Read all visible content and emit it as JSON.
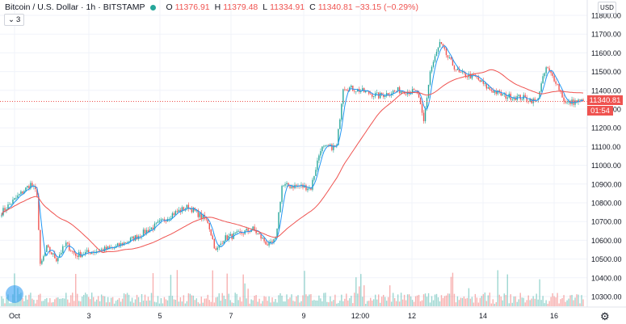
{
  "header": {
    "symbol": "Bitcoin / U.S. Dollar",
    "interval": "1h",
    "exchange": "BITSTAMP",
    "sep": "·",
    "open_label": "O",
    "open": "11376.91",
    "high_label": "H",
    "high": "11379.48",
    "low_label": "L",
    "low": "11334.91",
    "close_label": "C",
    "close": "11340.81",
    "change": "−33.15 (−0.29%)"
  },
  "indicator": {
    "count": "3",
    "chevron": "⌄"
  },
  "currency": "USD",
  "price_tag": "11340.81",
  "countdown": "01:54",
  "settings_icon": "⚙",
  "colors": {
    "up": "#26a69a",
    "down": "#ef5350",
    "ma_fast": "#2196f3",
    "ma_slow": "#ef5350"
  },
  "chart_data": {
    "type": "candlestick",
    "ylim": [
      10250,
      11850
    ],
    "y_ticks": [
      "11800.00",
      "11700.00",
      "11600.00",
      "11500.00",
      "11400.00",
      "11300.00",
      "11200.00",
      "11100.00",
      "11000.00",
      "10900.00",
      "10800.00",
      "10700.00",
      "10600.00",
      "10500.00",
      "10400.00",
      "10300.00"
    ],
    "x_ticks": [
      "Oct",
      "3",
      "5",
      "7",
      "9",
      "12:00",
      "12",
      "14",
      "16"
    ],
    "last_price": 11340.81,
    "trend_points": [
      [
        0,
        10750
      ],
      [
        6,
        10800
      ],
      [
        12,
        10850
      ],
      [
        18,
        10900
      ],
      [
        22,
        10850
      ],
      [
        24,
        10460
      ],
      [
        28,
        10560
      ],
      [
        34,
        10500
      ],
      [
        40,
        10580
      ],
      [
        46,
        10520
      ],
      [
        56,
        10540
      ],
      [
        70,
        10560
      ],
      [
        84,
        10620
      ],
      [
        96,
        10680
      ],
      [
        106,
        10740
      ],
      [
        116,
        10780
      ],
      [
        122,
        10740
      ],
      [
        128,
        10700
      ],
      [
        133,
        10540
      ],
      [
        138,
        10610
      ],
      [
        146,
        10630
      ],
      [
        156,
        10660
      ],
      [
        166,
        10570
      ],
      [
        170,
        10600
      ],
      [
        174,
        10890
      ],
      [
        184,
        10890
      ],
      [
        192,
        10880
      ],
      [
        198,
        11090
      ],
      [
        208,
        11100
      ],
      [
        212,
        11420
      ],
      [
        222,
        11400
      ],
      [
        234,
        11370
      ],
      [
        246,
        11400
      ],
      [
        258,
        11390
      ],
      [
        262,
        11230
      ],
      [
        266,
        11500
      ],
      [
        272,
        11650
      ],
      [
        278,
        11560
      ],
      [
        284,
        11490
      ],
      [
        294,
        11470
      ],
      [
        302,
        11410
      ],
      [
        312,
        11370
      ],
      [
        324,
        11360
      ],
      [
        332,
        11340
      ],
      [
        338,
        11520
      ],
      [
        344,
        11450
      ],
      [
        350,
        11330
      ],
      [
        356,
        11340
      ],
      [
        361,
        11341
      ]
    ]
  }
}
